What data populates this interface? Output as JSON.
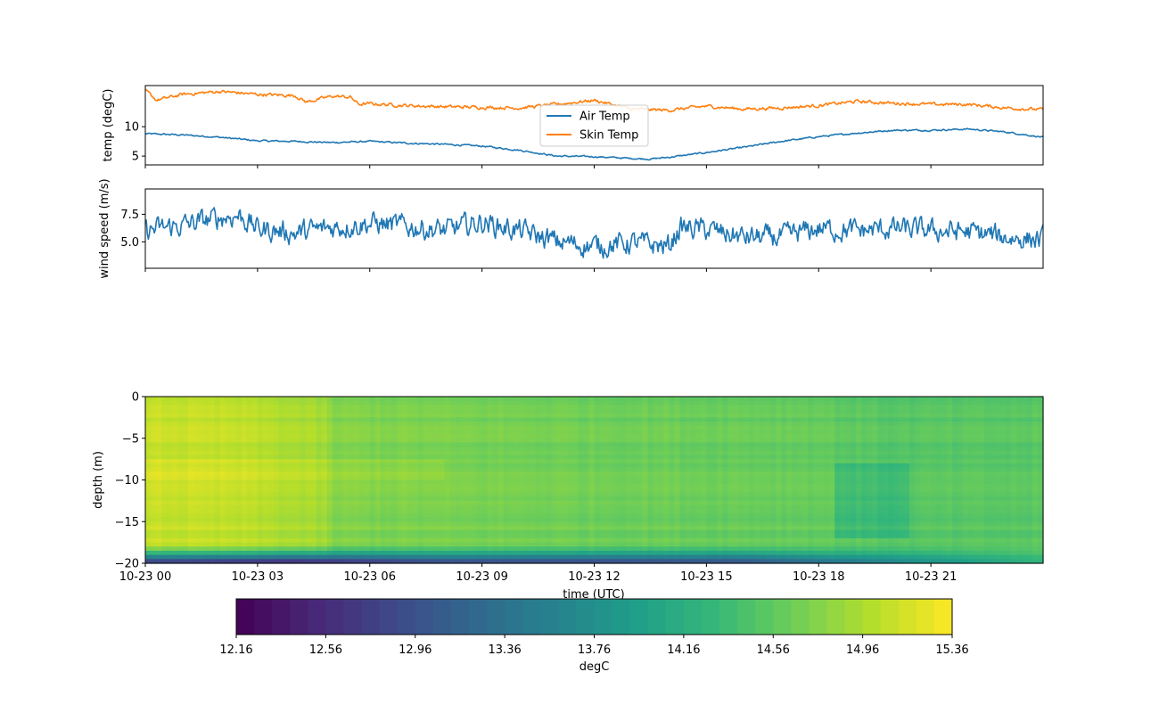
{
  "chart_data": [
    {
      "type": "line",
      "ylabel": "temp (degC)",
      "x_domain": [
        "10-23 00:00",
        "10-24 00:00"
      ],
      "ylim": [
        3.5,
        17.0
      ],
      "yticks": [
        5,
        10
      ],
      "ytick_labels": [
        "5",
        "10"
      ],
      "legend": {
        "placement": "upper center",
        "entries": [
          "Air Temp",
          "Skin Temp"
        ]
      },
      "series": [
        {
          "name": "Air Temp",
          "color": "#1f77b4",
          "x_hours": [
            0,
            1,
            2,
            3,
            4,
            5,
            6,
            7,
            8,
            9,
            10,
            10.5,
            11,
            12,
            13,
            13.5,
            14,
            15,
            16,
            17,
            18,
            19,
            20,
            21,
            22,
            23,
            24
          ],
          "values": [
            8.8,
            8.6,
            8.2,
            7.6,
            7.5,
            7.3,
            7.5,
            7.2,
            7.0,
            6.7,
            6.0,
            5.5,
            5.0,
            4.9,
            4.6,
            4.5,
            4.8,
            5.6,
            6.5,
            7.5,
            8.3,
            8.9,
            9.4,
            9.4,
            9.6,
            9.1,
            8.2
          ],
          "noise": 0.12
        },
        {
          "name": "Skin Temp",
          "color": "#ff7f0e",
          "x_hours": [
            0,
            0.3,
            1,
            2,
            3,
            4,
            4.3,
            5,
            5.5,
            5.7,
            6,
            7,
            8,
            9,
            10,
            11,
            12,
            13,
            14,
            15,
            16,
            17,
            18,
            19,
            20,
            21,
            22,
            23,
            24
          ],
          "values": [
            16.2,
            14.5,
            15.5,
            16.0,
            15.5,
            15.3,
            14.2,
            15.2,
            15.0,
            13.8,
            13.9,
            13.6,
            13.4,
            13.3,
            13.2,
            13.8,
            14.5,
            13.0,
            12.8,
            13.5,
            13.0,
            13.2,
            13.6,
            14.3,
            14.0,
            13.8,
            13.8,
            13.2,
            12.9
          ],
          "noise": 0.25
        }
      ]
    },
    {
      "type": "line",
      "ylabel": "wind speed (m/s)",
      "x_domain": [
        "10-23 00:00",
        "10-24 00:00"
      ],
      "ylim": [
        2.6,
        9.8
      ],
      "yticks": [
        5.0,
        7.5
      ],
      "ytick_labels": [
        "5.0",
        "7.5"
      ],
      "series": [
        {
          "name": "",
          "color": "#1f77b4",
          "x_hours": [
            0,
            1,
            2,
            2.5,
            3,
            4,
            5,
            6,
            7,
            8,
            9,
            10,
            11,
            12,
            13,
            14,
            14.3,
            15,
            16,
            17,
            18,
            19,
            20,
            21,
            22,
            23,
            24
          ],
          "values": [
            6.0,
            6.5,
            7.2,
            7.4,
            6.2,
            5.8,
            6.3,
            6.7,
            6.4,
            6.0,
            6.8,
            6.0,
            5.0,
            4.6,
            4.9,
            4.6,
            6.3,
            6.1,
            5.4,
            5.4,
            6.2,
            6.0,
            6.2,
            6.0,
            5.9,
            5.4,
            5.2
          ],
          "noise": 0.9
        }
      ]
    },
    {
      "type": "heatmap",
      "xlabel": "time (UTC)",
      "ylabel": "depth (m)",
      "x_domain": [
        "10-23 00:00",
        "10-24 00:00"
      ],
      "xtick_labels": [
        "10-23 00",
        "10-23 03",
        "10-23 06",
        "10-23 09",
        "10-23 12",
        "10-23 15",
        "10-23 18",
        "10-23 21"
      ],
      "ylim": [
        -20,
        0
      ],
      "yticks": [
        0,
        -5,
        -10,
        -15,
        -20
      ],
      "ytick_labels": [
        "0",
        "−5",
        "−10",
        "−15",
        "−20"
      ],
      "colormap": "viridis",
      "value_range": [
        12.16,
        15.36
      ],
      "colorbar": {
        "label": "degC",
        "ticks": [
          12.16,
          12.56,
          12.96,
          13.36,
          13.76,
          14.16,
          14.56,
          14.96,
          15.36
        ],
        "tick_labels": [
          "12.16",
          "12.56",
          "12.96",
          "13.36",
          "13.76",
          "14.16",
          "14.56",
          "14.96",
          "15.36"
        ]
      },
      "surface_temp_by_hour": {
        "x_hours": [
          0,
          2.4,
          4.8,
          5,
          8,
          12,
          15,
          18,
          18.6,
          20,
          24
        ],
        "values": [
          15.1,
          15.05,
          14.9,
          14.75,
          14.7,
          14.65,
          14.62,
          14.6,
          14.55,
          14.5,
          14.52
        ]
      },
      "bottom_layer": {
        "depth_top": -17.5,
        "depth_bottom": -20,
        "bottom_values_by_hour": {
          "x_hours": [
            0,
            4,
            5,
            8,
            12,
            16,
            18.5,
            24
          ],
          "values": [
            12.5,
            12.3,
            12.4,
            12.7,
            12.7,
            12.8,
            13.3,
            14.2
          ]
        }
      }
    }
  ]
}
